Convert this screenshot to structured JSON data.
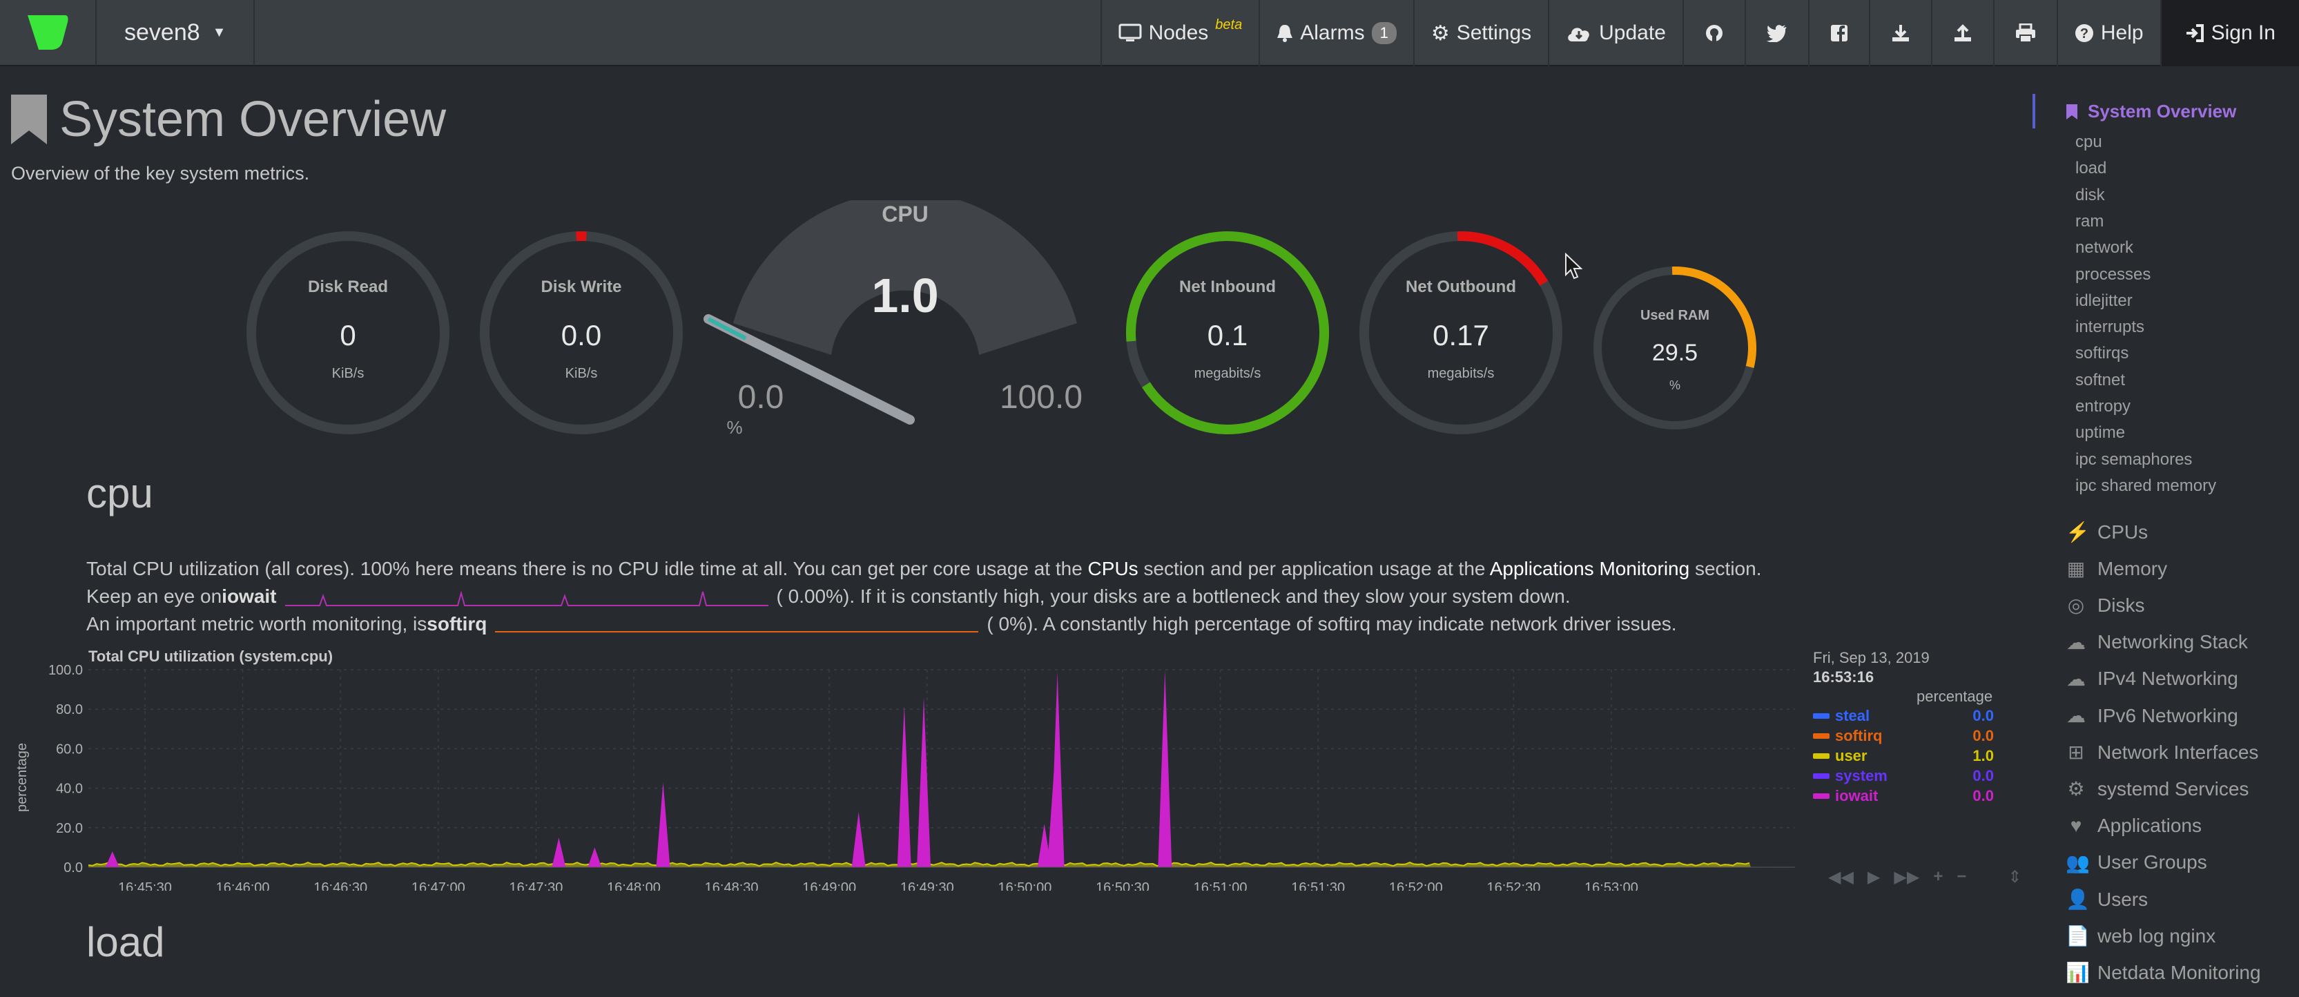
{
  "navbar": {
    "host": "seven8",
    "items": {
      "nodes": "Nodes",
      "nodes_sup": "beta",
      "alarms": "Alarms",
      "alarms_count": "1",
      "settings": "Settings",
      "update": "Update",
      "help": "Help",
      "signin": "Sign In"
    }
  },
  "page": {
    "title": "System Overview",
    "subtitle": "Overview of the key system metrics."
  },
  "gauges": {
    "disk_read": {
      "title": "Disk Read",
      "value": "0",
      "unit": "KiB/s"
    },
    "disk_write": {
      "title": "Disk Write",
      "value": "0.0",
      "unit": "KiB/s"
    },
    "cpu": {
      "title": "CPU",
      "value": "1.0",
      "min": "0.0",
      "max": "100.0",
      "unit": "%",
      "fraction": 0.01
    },
    "net_inbound": {
      "title": "Net Inbound",
      "value": "0.1",
      "unit": "megabits/s",
      "fraction": 0.95
    },
    "net_outbound": {
      "title": "Net Outbound",
      "value": "0.17",
      "unit": "megabits/s",
      "fraction": 0.17
    },
    "used_ram": {
      "title": "Used RAM",
      "value": "29.5",
      "unit": "%",
      "fraction": 0.295
    }
  },
  "cpu_section": {
    "heading": "cpu",
    "line1_a": "Total CPU utilization (all cores). 100% here means there is no CPU idle time at all. You can get per core usage at the ",
    "line1_b": "CPUs",
    "line1_c": " section and per application usage at the ",
    "line1_d": "Applications Monitoring",
    "line1_e": " section.",
    "line2_a": "Keep an eye on ",
    "line2_b": "iowait",
    "line2_c": "(        0.00%). If it is constantly high, your disks are a bottleneck and they slow your system down.",
    "line3_a": "An important metric worth monitoring, is ",
    "line3_b": "softirq",
    "line3_c": "(          0%). A constantly high percentage of softirq may indicate network driver issues."
  },
  "load_section": {
    "heading": "load"
  },
  "chart_data": {
    "type": "area",
    "title": "Total CPU utilization (system.cpu)",
    "ylabel": "percentage",
    "ylim": [
      0,
      100
    ],
    "yticks": [
      "0.0",
      "20.0",
      "40.0",
      "60.0",
      "80.0",
      "100.0"
    ],
    "xticks": [
      "16:45:30",
      "16:46:00",
      "16:46:30",
      "16:47:00",
      "16:47:30",
      "16:48:00",
      "16:48:30",
      "16:49:00",
      "16:49:30",
      "16:50:00",
      "16:50:30",
      "16:51:00",
      "16:51:30",
      "16:52:00",
      "16:52:30",
      "16:53:00"
    ],
    "iowait_spikes": [
      {
        "t": "16:45:20",
        "v": 8
      },
      {
        "t": "16:47:37",
        "v": 15
      },
      {
        "t": "16:47:48",
        "v": 10
      },
      {
        "t": "16:48:09",
        "v": 43
      },
      {
        "t": "16:49:09",
        "v": 28
      },
      {
        "t": "16:49:23",
        "v": 82
      },
      {
        "t": "16:49:29",
        "v": 86
      },
      {
        "t": "16:50:06",
        "v": 22
      },
      {
        "t": "16:50:09",
        "v": 50
      },
      {
        "t": "16:50:10",
        "v": 99
      },
      {
        "t": "16:50:43",
        "v": 100
      }
    ],
    "user_baseline": 1.5,
    "legend": {
      "date": "Fri, Sep 13, 2019",
      "time": "16:53:16",
      "unit": "percentage",
      "series": [
        {
          "name": "steal",
          "color": "#3366ff",
          "value": "0.0"
        },
        {
          "name": "softirq",
          "color": "#e6640f",
          "value": "0.0"
        },
        {
          "name": "user",
          "color": "#d4c700",
          "value": "1.0"
        },
        {
          "name": "system",
          "color": "#6633ff",
          "value": "0.0"
        },
        {
          "name": "iowait",
          "color": "#cc22cc",
          "value": "0.0"
        }
      ]
    }
  },
  "sidebar": {
    "active": "System Overview",
    "subitems": [
      "cpu",
      "load",
      "disk",
      "ram",
      "network",
      "processes",
      "idlejitter",
      "interrupts",
      "softirqs",
      "softnet",
      "entropy",
      "uptime",
      "ipc semaphores",
      "ipc shared memory"
    ],
    "sections": [
      "CPUs",
      "Memory",
      "Disks",
      "Networking Stack",
      "IPv4 Networking",
      "IPv6 Networking",
      "Network Interfaces",
      "systemd Services",
      "Applications",
      "User Groups",
      "Users",
      "web log nginx",
      "Netdata Monitoring"
    ]
  },
  "colors": {
    "background": "#272b30",
    "navbar": "#3a3f44",
    "accent": "#a070e0",
    "gauge_green": "#4caa15",
    "gauge_red": "#e01010",
    "gauge_orange": "#f59c0a"
  }
}
